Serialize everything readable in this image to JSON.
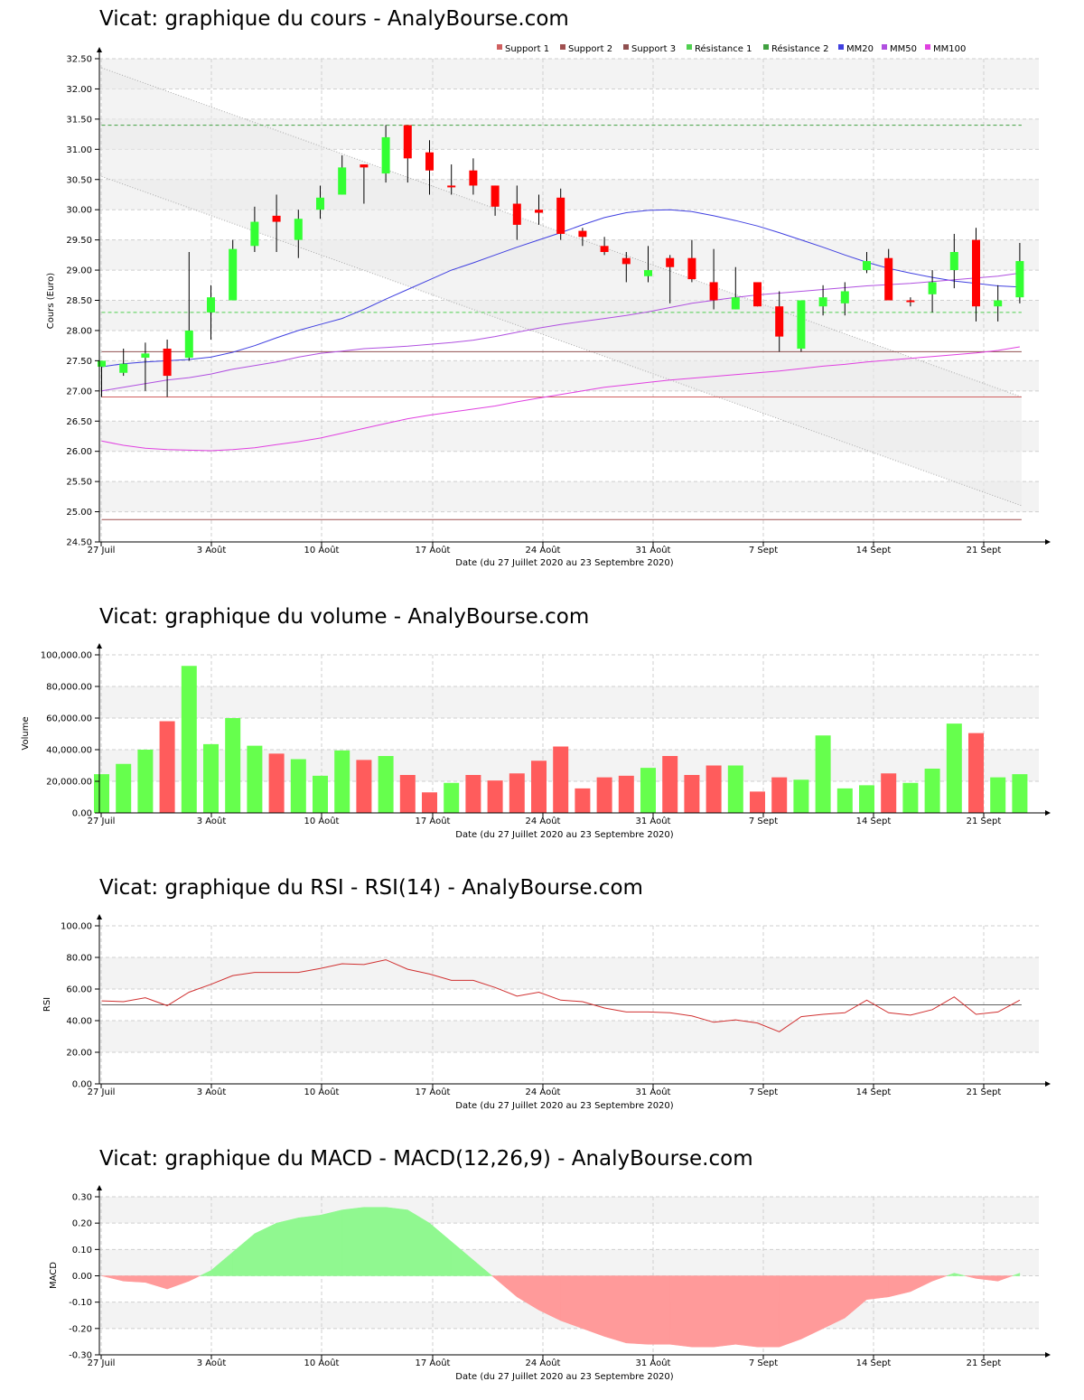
{
  "titles": {
    "price": "Vicat: graphique du cours - AnalyBourse.com",
    "volume": "Vicat: graphique du volume - AnalyBourse.com",
    "rsi": "Vicat: graphique du RSI - RSI(14) - AnalyBourse.com",
    "macd": "Vicat: graphique du MACD - MACD(12,26,9) - AnalyBourse.com"
  },
  "colors": {
    "up": "#33ff33",
    "down": "#ff0000",
    "volume_up": "#66ff4d",
    "volume_down": "#ff5c5c",
    "mm20": "#4040e0",
    "mm50": "#b050e0",
    "mm100": "#e040e0",
    "support1": "#d06060",
    "support2": "#a05050",
    "support3": "#905050",
    "resistance1": "#50d050",
    "resistance2": "#40a040",
    "rsi_line": "#d03030",
    "macd_pos": "#90f890",
    "macd_neg": "#ff9a9a"
  },
  "chart_data": [
    {
      "type": "candlestick",
      "title": "Vicat: graphique du cours - AnalyBourse.com",
      "xlabel": "Date (du 27 Juillet 2020 au 23 Septembre 2020)",
      "ylabel": "Cours (Euro)",
      "ylim": [
        24.5,
        32.5
      ],
      "yticks": [
        "24.50",
        "25.00",
        "25.50",
        "26.00",
        "26.50",
        "27.00",
        "27.50",
        "28.00",
        "28.50",
        "29.00",
        "29.50",
        "30.00",
        "30.50",
        "31.00",
        "31.50",
        "32.00",
        "32.50"
      ],
      "xticks": [
        "27 Juil",
        "3 Août",
        "10 Août",
        "17 Août",
        "24 Août",
        "31 Août",
        "7 Sept",
        "14 Sept",
        "21 Sept"
      ],
      "grid": true,
      "legend_position": "top-right",
      "legend": [
        "Support 1",
        "Support 2",
        "Support 3",
        "Résistance 1",
        "Résistance 2",
        "MM20",
        "MM50",
        "MM100"
      ],
      "candles": [
        {
          "o": 27.4,
          "c": 27.5,
          "h": 27.5,
          "l": 26.9
        },
        {
          "o": 27.3,
          "c": 27.45,
          "h": 27.7,
          "l": 27.25
        },
        {
          "o": 27.55,
          "c": 27.62,
          "h": 27.8,
          "l": 27.0
        },
        {
          "o": 27.7,
          "c": 27.25,
          "h": 27.85,
          "l": 26.9
        },
        {
          "o": 27.55,
          "c": 28.0,
          "h": 29.3,
          "l": 27.5
        },
        {
          "o": 28.3,
          "c": 28.55,
          "h": 28.75,
          "l": 27.85
        },
        {
          "o": 28.5,
          "c": 29.35,
          "h": 29.5,
          "l": 28.5
        },
        {
          "o": 29.4,
          "c": 29.8,
          "h": 30.05,
          "l": 29.3
        },
        {
          "o": 29.9,
          "c": 29.8,
          "h": 30.25,
          "l": 29.3
        },
        {
          "o": 29.5,
          "c": 29.85,
          "h": 30.0,
          "l": 29.2
        },
        {
          "o": 30.0,
          "c": 30.2,
          "h": 30.4,
          "l": 29.85
        },
        {
          "o": 30.25,
          "c": 30.7,
          "h": 30.9,
          "l": 30.25
        },
        {
          "o": 30.75,
          "c": 30.7,
          "h": 30.75,
          "l": 30.1
        },
        {
          "o": 30.6,
          "c": 31.2,
          "h": 31.4,
          "l": 30.45
        },
        {
          "o": 31.4,
          "c": 30.85,
          "h": 31.4,
          "l": 30.45
        },
        {
          "o": 30.95,
          "c": 30.65,
          "h": 31.15,
          "l": 30.25
        },
        {
          "o": 30.4,
          "c": 30.38,
          "h": 30.75,
          "l": 30.25
        },
        {
          "o": 30.65,
          "c": 30.4,
          "h": 30.85,
          "l": 30.25
        },
        {
          "o": 30.4,
          "c": 30.05,
          "h": 30.4,
          "l": 29.9
        },
        {
          "o": 30.1,
          "c": 29.75,
          "h": 30.4,
          "l": 29.5
        },
        {
          "o": 30.0,
          "c": 29.95,
          "h": 30.25,
          "l": 29.75
        },
        {
          "o": 30.2,
          "c": 29.6,
          "h": 30.35,
          "l": 29.5
        },
        {
          "o": 29.65,
          "c": 29.55,
          "h": 29.7,
          "l": 29.4
        },
        {
          "o": 29.4,
          "c": 29.3,
          "h": 29.55,
          "l": 29.25
        },
        {
          "o": 29.2,
          "c": 29.1,
          "h": 29.3,
          "l": 28.8
        },
        {
          "o": 28.9,
          "c": 29.0,
          "h": 29.4,
          "l": 28.8
        },
        {
          "o": 29.2,
          "c": 29.05,
          "h": 29.25,
          "l": 28.45
        },
        {
          "o": 29.2,
          "c": 28.85,
          "h": 29.5,
          "l": 28.8
        },
        {
          "o": 28.8,
          "c": 28.5,
          "h": 29.35,
          "l": 28.35
        },
        {
          "o": 28.35,
          "c": 28.55,
          "h": 29.05,
          "l": 28.35
        },
        {
          "o": 28.8,
          "c": 28.4,
          "h": 28.8,
          "l": 28.4
        },
        {
          "o": 28.4,
          "c": 27.9,
          "h": 28.65,
          "l": 27.65
        },
        {
          "o": 27.7,
          "c": 28.5,
          "h": 28.5,
          "l": 27.65
        },
        {
          "o": 28.4,
          "c": 28.55,
          "h": 28.75,
          "l": 28.25
        },
        {
          "o": 28.45,
          "c": 28.65,
          "h": 28.8,
          "l": 28.25
        },
        {
          "o": 29.0,
          "c": 29.15,
          "h": 29.3,
          "l": 28.95
        },
        {
          "o": 29.2,
          "c": 28.5,
          "h": 29.35,
          "l": 28.5
        },
        {
          "o": 28.5,
          "c": 28.48,
          "h": 28.55,
          "l": 28.4
        },
        {
          "o": 28.6,
          "c": 28.8,
          "h": 29.0,
          "l": 28.3
        },
        {
          "o": 29.0,
          "c": 29.3,
          "h": 29.6,
          "l": 28.7
        },
        {
          "o": 29.5,
          "c": 28.4,
          "h": 29.7,
          "l": 28.15
        },
        {
          "o": 28.4,
          "c": 28.5,
          "h": 28.75,
          "l": 28.15
        },
        {
          "o": 28.55,
          "c": 29.15,
          "h": 29.45,
          "l": 28.45
        }
      ],
      "lines": {
        "support1": 26.9,
        "support2": 24.87,
        "support3": 27.65,
        "resistance1": 28.3,
        "resistance2": 31.4
      },
      "channel": {
        "upper": [
          32.35,
          26.9
        ],
        "lower": [
          30.55,
          25.1
        ]
      },
      "series": [
        {
          "name": "MM20",
          "values": [
            27.4,
            27.45,
            27.48,
            27.5,
            27.52,
            27.56,
            27.64,
            27.75,
            27.88,
            28.0,
            28.1,
            28.2,
            28.35,
            28.52,
            28.68,
            28.84,
            29.0,
            29.12,
            29.25,
            29.38,
            29.5,
            29.62,
            29.75,
            29.87,
            29.95,
            29.99,
            30.0,
            29.97,
            29.9,
            29.82,
            29.73,
            29.62,
            29.5,
            29.38,
            29.25,
            29.13,
            29.03,
            28.95,
            28.88,
            28.82,
            28.78,
            28.74,
            28.72
          ]
        },
        {
          "name": "MM50",
          "values": [
            27.0,
            27.06,
            27.12,
            27.18,
            27.22,
            27.28,
            27.36,
            27.42,
            27.48,
            27.56,
            27.62,
            27.66,
            27.7,
            27.72,
            27.74,
            27.77,
            27.8,
            27.84,
            27.9,
            27.97,
            28.04,
            28.1,
            28.15,
            28.2,
            28.25,
            28.31,
            28.38,
            28.45,
            28.5,
            28.55,
            28.59,
            28.62,
            28.65,
            28.68,
            28.71,
            28.74,
            28.76,
            28.78,
            28.81,
            28.84,
            28.87,
            28.9,
            28.95
          ]
        },
        {
          "name": "MM100",
          "values": [
            26.17,
            26.1,
            26.05,
            26.03,
            26.02,
            26.01,
            26.03,
            26.06,
            26.11,
            26.16,
            26.22,
            26.3,
            26.38,
            26.46,
            26.54,
            26.6,
            26.65,
            26.7,
            26.75,
            26.82,
            26.88,
            26.94,
            27.0,
            27.06,
            27.1,
            27.14,
            27.18,
            27.21,
            27.24,
            27.27,
            27.3,
            27.33,
            27.37,
            27.41,
            27.44,
            27.48,
            27.51,
            27.54,
            27.57,
            27.6,
            27.63,
            27.67,
            27.73
          ]
        }
      ]
    },
    {
      "type": "bar",
      "title": "Vicat: graphique du volume - AnalyBourse.com",
      "xlabel": "Date (du 27 Juillet 2020 au 23 Septembre 2020)",
      "ylabel": "Volume",
      "ylim": [
        0,
        100000
      ],
      "yticks": [
        "0.00",
        "20,000.00",
        "40,000.00",
        "60,000.00",
        "80,000.00",
        "100,000.00"
      ],
      "xticks": [
        "27 Juil",
        "3 Août",
        "10 Août",
        "17 Août",
        "24 Août",
        "31 Août",
        "7 Sept",
        "14 Sept",
        "21 Sept"
      ],
      "grid": true,
      "values": [
        24500,
        31000,
        40000,
        58000,
        93000,
        43500,
        60000,
        42500,
        37500,
        34000,
        23500,
        39500,
        33500,
        36000,
        24000,
        13000,
        19000,
        24000,
        20500,
        25000,
        33000,
        42000,
        15500,
        22500,
        23500,
        28500,
        36000,
        24000,
        30000,
        30000,
        13500,
        22500,
        21000,
        49000,
        15500,
        17500,
        25000,
        19000,
        28000,
        56500,
        50500,
        22500,
        24500
      ],
      "up": [
        1,
        1,
        1,
        0,
        1,
        1,
        1,
        1,
        0,
        1,
        1,
        1,
        0,
        1,
        0,
        0,
        1,
        0,
        0,
        0,
        0,
        0,
        0,
        0,
        0,
        1,
        0,
        0,
        0,
        1,
        0,
        0,
        1,
        1,
        1,
        1,
        0,
        1,
        1,
        1,
        0,
        1,
        1
      ]
    },
    {
      "type": "line",
      "title": "Vicat: graphique du RSI - RSI(14) - AnalyBourse.com",
      "xlabel": "Date (du 27 Juillet 2020 au 23 Septembre 2020)",
      "ylabel": "RSI",
      "ylim": [
        0,
        100
      ],
      "yticks": [
        "0.00",
        "20.00",
        "40.00",
        "60.00",
        "80.00",
        "100.00"
      ],
      "xticks": [
        "27 Juil",
        "3 Août",
        "10 Août",
        "17 Août",
        "24 Août",
        "31 Août",
        "7 Sept",
        "14 Sept",
        "21 Sept"
      ],
      "grid": true,
      "reference_line": 50,
      "series": [
        {
          "name": "RSI(14)",
          "values": [
            52.5,
            52,
            54.5,
            49.5,
            58,
            63,
            68.5,
            70.5,
            70.5,
            70.5,
            73,
            76,
            75.5,
            78.5,
            72.5,
            69.5,
            65.5,
            65.5,
            61,
            55.5,
            58,
            53,
            52,
            48,
            45.5,
            45.5,
            45,
            43,
            39,
            40.5,
            38.5,
            33,
            42.5,
            44,
            45,
            53,
            45,
            43.5,
            47,
            55,
            44,
            45.5,
            53
          ]
        }
      ]
    },
    {
      "type": "area",
      "title": "Vicat: graphique du MACD - MACD(12,26,9) - AnalyBourse.com",
      "xlabel": "Date (du 27 Juillet 2020 au 23 Septembre 2020)",
      "ylabel": "MACD",
      "ylim": [
        -0.3,
        0.3
      ],
      "yticks": [
        "-0.30",
        "-0.20",
        "-0.10",
        "0.00",
        "0.10",
        "0.20",
        "0.30"
      ],
      "xticks": [
        "27 Juil",
        "3 Août",
        "10 Août",
        "17 Août",
        "24 Août",
        "31 Août",
        "7 Sept",
        "14 Sept",
        "21 Sept"
      ],
      "grid": true,
      "series": [
        {
          "name": "MACD(12,26,9)",
          "values": [
            0,
            -0.02,
            -0.025,
            -0.05,
            -0.02,
            0.02,
            0.09,
            0.16,
            0.2,
            0.22,
            0.23,
            0.25,
            0.26,
            0.26,
            0.25,
            0.2,
            0.13,
            0.06,
            -0.01,
            -0.08,
            -0.13,
            -0.17,
            -0.2,
            -0.23,
            -0.255,
            -0.26,
            -0.26,
            -0.27,
            -0.27,
            -0.26,
            -0.27,
            -0.27,
            -0.24,
            -0.2,
            -0.16,
            -0.09,
            -0.08,
            -0.06,
            -0.02,
            0.01,
            -0.01,
            -0.02,
            0.01
          ]
        }
      ]
    }
  ]
}
